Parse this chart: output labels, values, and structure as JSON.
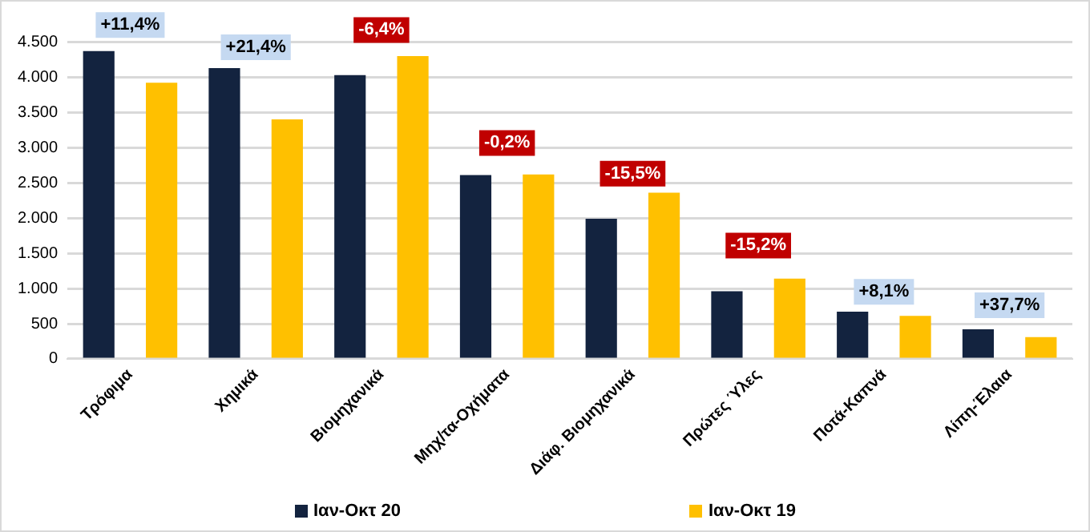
{
  "chart_data": {
    "type": "bar",
    "categories": [
      "Τρόφιμα",
      "Χημικά",
      "Βιομηχανικά",
      "Μηχ/τα-Οχήματα",
      "Διάφ. Βιομηχανικά",
      "Πρώτες Ύλες",
      "Ποτά-Καπνά",
      "Λίπη-Έλαια"
    ],
    "series": [
      {
        "name": "Ιαν-Οκτ 20",
        "color": "#13233f",
        "values": [
          4370,
          4130,
          4030,
          2610,
          1990,
          960,
          670,
          420
        ]
      },
      {
        "name": "Ιαν-Οκτ 19",
        "color": "#ffc000",
        "values": [
          3920,
          3400,
          4300,
          2620,
          2360,
          1140,
          610,
          310
        ]
      }
    ],
    "ylim": [
      0,
      4800
    ],
    "yticks": [
      0,
      {
        "value": 500,
        "label": "500"
      },
      {
        "value": 1000,
        "label": "1.000"
      },
      {
        "value": 1500,
        "label": "1.500"
      },
      {
        "value": 2000,
        "label": "2.000"
      },
      {
        "value": 2500,
        "label": "2.500"
      },
      {
        "value": 3000,
        "label": "3.000"
      },
      {
        "value": 3500,
        "label": "3.500"
      },
      {
        "value": 4000,
        "label": "4.000"
      },
      {
        "value": 4500,
        "label": "4.500"
      }
    ],
    "grid": "y",
    "legend": "bottom",
    "marker": "square",
    "annotations": [
      {
        "text": "+11,4%",
        "x": "Τρόφιμα",
        "y": 4740
      },
      {
        "text": "+21,4%",
        "x": "Χημικά",
        "y": 4425
      },
      {
        "text": "-6,4%",
        "x": "Βιομηχανικά",
        "y": 4670
      },
      {
        "text": "-0,2%",
        "x": "Μηχ/τα-Οχήματα",
        "y": 3066
      },
      {
        "text": "-15,5%",
        "x": "Διάφ. Βιομηχανικά",
        "y": 2630
      },
      {
        "text": "-15,2%",
        "x": "Πρώτες Ύλες",
        "y": 1610
      },
      {
        "text": "+8,1%",
        "x": "Ποτά-Καπνά",
        "y": 952
      },
      {
        "text": "+37,7%",
        "x": "Λίπη-Έλαια",
        "y": 761
      }
    ]
  }
}
